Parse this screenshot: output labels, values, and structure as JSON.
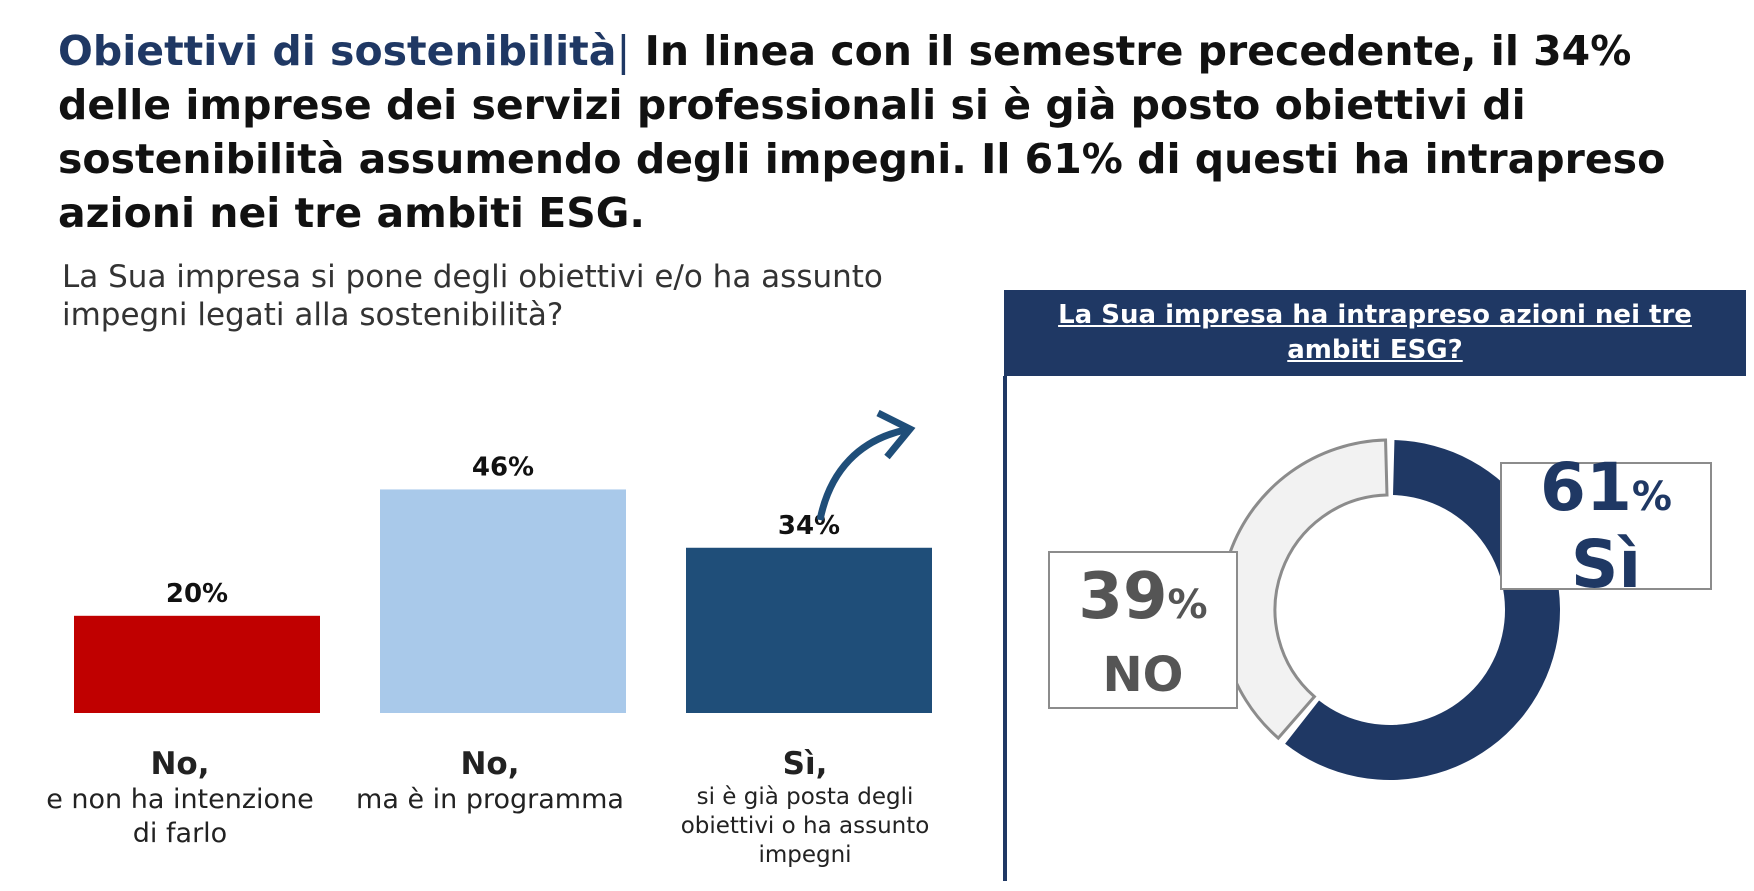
{
  "headline": {
    "topic": "Obiettivi di sostenibilità",
    "separator": "|",
    "text": "In linea con il semestre precedente, il 34% delle imprese dei servizi professionali si è già posto obiettivi di sostenibilità assumendo degli impegni. Il 61% di questi ha intrapreso azioni nei tre ambiti ESG."
  },
  "question": "La Sua impresa si pone degli obiettivi e/o ha assunto impegni legati alla sostenibilità?",
  "chart_data": [
    {
      "type": "bar",
      "title": "La Sua impresa si pone degli obiettivi e/o ha assunto impegni legati alla sostenibilità?",
      "categories": [
        "No, e non ha intenzione di farlo",
        "No, ma è in programma",
        "Sì, si è già posta degli obiettivi o ha assunto impegni"
      ],
      "values": [
        20,
        46,
        34
      ],
      "value_labels": [
        "20%",
        "46%",
        "34%"
      ],
      "colors": [
        "#c00000",
        "#a9c9ea",
        "#1f4e79"
      ],
      "ylim": [
        0,
        50
      ],
      "grid": false,
      "category_labels": [
        {
          "main": "No,",
          "sub": "e non ha intenzione di farlo"
        },
        {
          "main": "No,",
          "sub": "ma è in programma"
        },
        {
          "main": "Sì,",
          "sub": "si è già posta degli obiettivi o ha assunto impegni"
        }
      ]
    },
    {
      "type": "pie",
      "title": "La Sua impresa ha intrapreso azioni nei tre ambiti ESG?",
      "categories": [
        "Sì",
        "NO"
      ],
      "values": [
        61,
        39
      ],
      "colors": [
        "#1f3864",
        "#f2f2f2"
      ],
      "labels": [
        {
          "pct": "61",
          "unit": "%",
          "name": "Sì"
        },
        {
          "pct": "39",
          "unit": "%",
          "name": "NO"
        }
      ]
    }
  ]
}
